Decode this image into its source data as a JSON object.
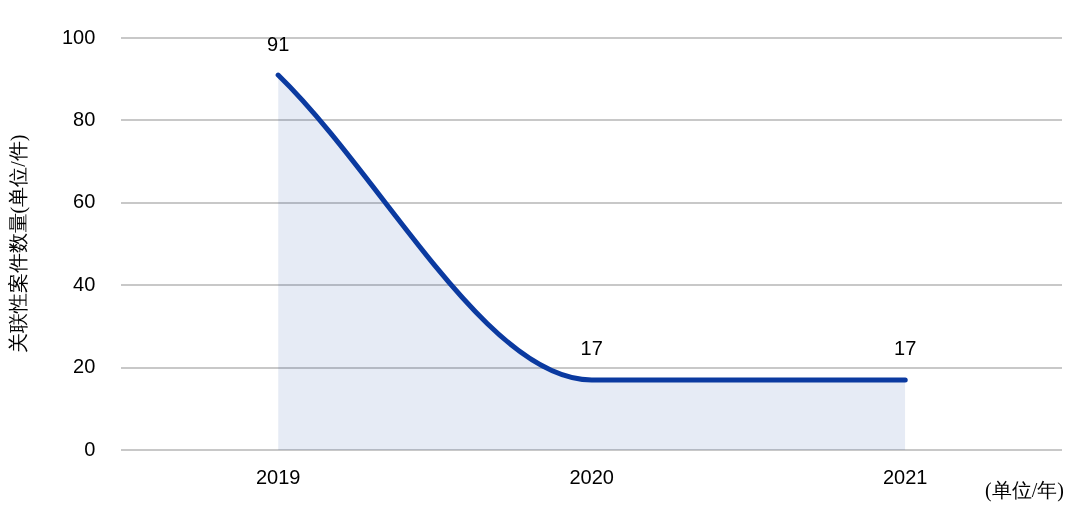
{
  "chart_data": {
    "type": "area",
    "categories": [
      "2019",
      "2020",
      "2021"
    ],
    "series": [
      {
        "color": "#0b3aa0",
        "values": [
          91,
          17,
          17
        ]
      }
    ],
    "ylabel": "关联性案件数量(单位/件)",
    "xlabel": "(单位/年)",
    "ylim": [
      0,
      100
    ],
    "yticks": [
      0,
      20,
      40,
      60,
      80,
      100
    ],
    "grid": "y",
    "legend": false,
    "marker": "none",
    "data_labels": true
  }
}
